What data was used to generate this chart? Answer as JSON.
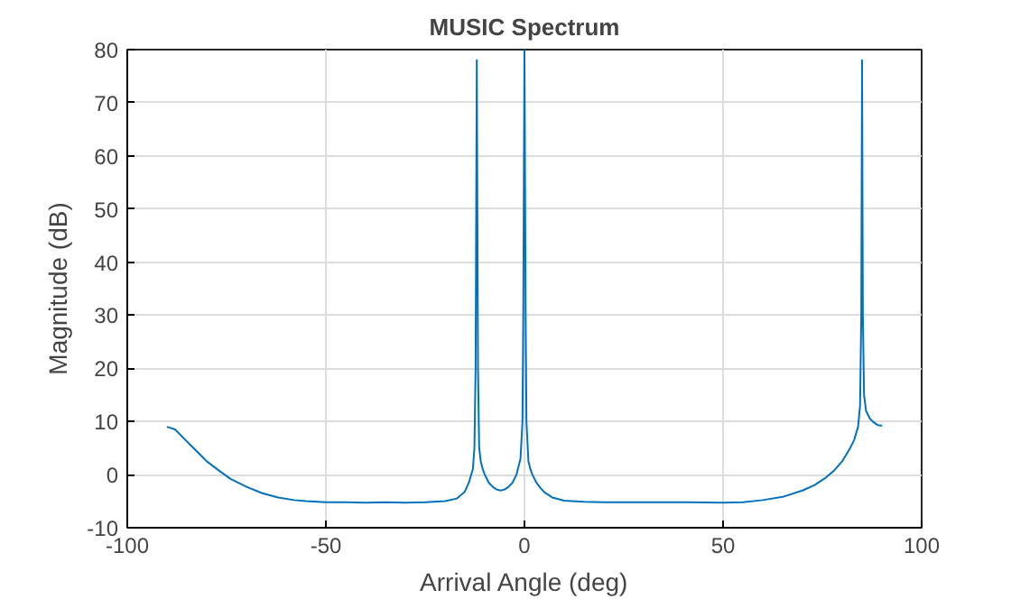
{
  "chart_data": {
    "type": "line",
    "title": "MUSIC Spectrum",
    "xlabel": "Arrival Angle (deg)",
    "ylabel": "Magnitude (dB)",
    "xlim": [
      -100,
      100
    ],
    "xticks": [
      -100,
      -50,
      0,
      50,
      100
    ],
    "ylim": [
      -10,
      80
    ],
    "yticks": [
      -10,
      0,
      10,
      20,
      30,
      40,
      50,
      60,
      70,
      80
    ],
    "grid": true,
    "marker": "none",
    "line_style": "solid",
    "series": [
      {
        "color": "#0072bd",
        "x": [
          -90,
          -88,
          -86,
          -84,
          -82,
          -80,
          -77,
          -74,
          -70,
          -66,
          -62,
          -58,
          -55,
          -50,
          -45,
          -40,
          -35,
          -30,
          -25,
          -20,
          -17,
          -15,
          -14,
          -13,
          -12.6,
          -12.3,
          -12,
          -11.7,
          -11.4,
          -11,
          -10.5,
          -10,
          -9,
          -8,
          -7,
          -6,
          -5,
          -4,
          -3,
          -2,
          -1.5,
          -1,
          -0.5,
          -0.3,
          0,
          0.3,
          0.5,
          1,
          1.5,
          2,
          3,
          4,
          5,
          7,
          10,
          15,
          20,
          30,
          40,
          50,
          55,
          60,
          65,
          70,
          73,
          76,
          78,
          80,
          82,
          83,
          84,
          84.5,
          84.8,
          85,
          85.2,
          85.5,
          86,
          87,
          88,
          89,
          90
        ],
        "values": [
          9,
          8.5,
          7,
          5.5,
          4,
          2.5,
          0.8,
          -0.8,
          -2.3,
          -3.5,
          -4.3,
          -4.8,
          -5,
          -5.2,
          -5.2,
          -5.3,
          -5.2,
          -5.3,
          -5.2,
          -5,
          -4.5,
          -3.2,
          -1.5,
          1,
          5,
          20,
          78,
          20,
          5,
          2.5,
          1,
          0,
          -1.5,
          -2.3,
          -2.8,
          -3,
          -2.8,
          -2.3,
          -1.5,
          0,
          1.5,
          3,
          10,
          30,
          80,
          30,
          10,
          2.5,
          1,
          0,
          -1.5,
          -2.5,
          -3.3,
          -4.3,
          -4.9,
          -5.1,
          -5.2,
          -5.2,
          -5.2,
          -5.3,
          -5.2,
          -4.8,
          -4.2,
          -3,
          -2,
          -0.5,
          0.8,
          2.5,
          5,
          6.5,
          9,
          13,
          30,
          78,
          30,
          15,
          12,
          10.5,
          9.8,
          9.3,
          9.2
        ]
      }
    ]
  }
}
